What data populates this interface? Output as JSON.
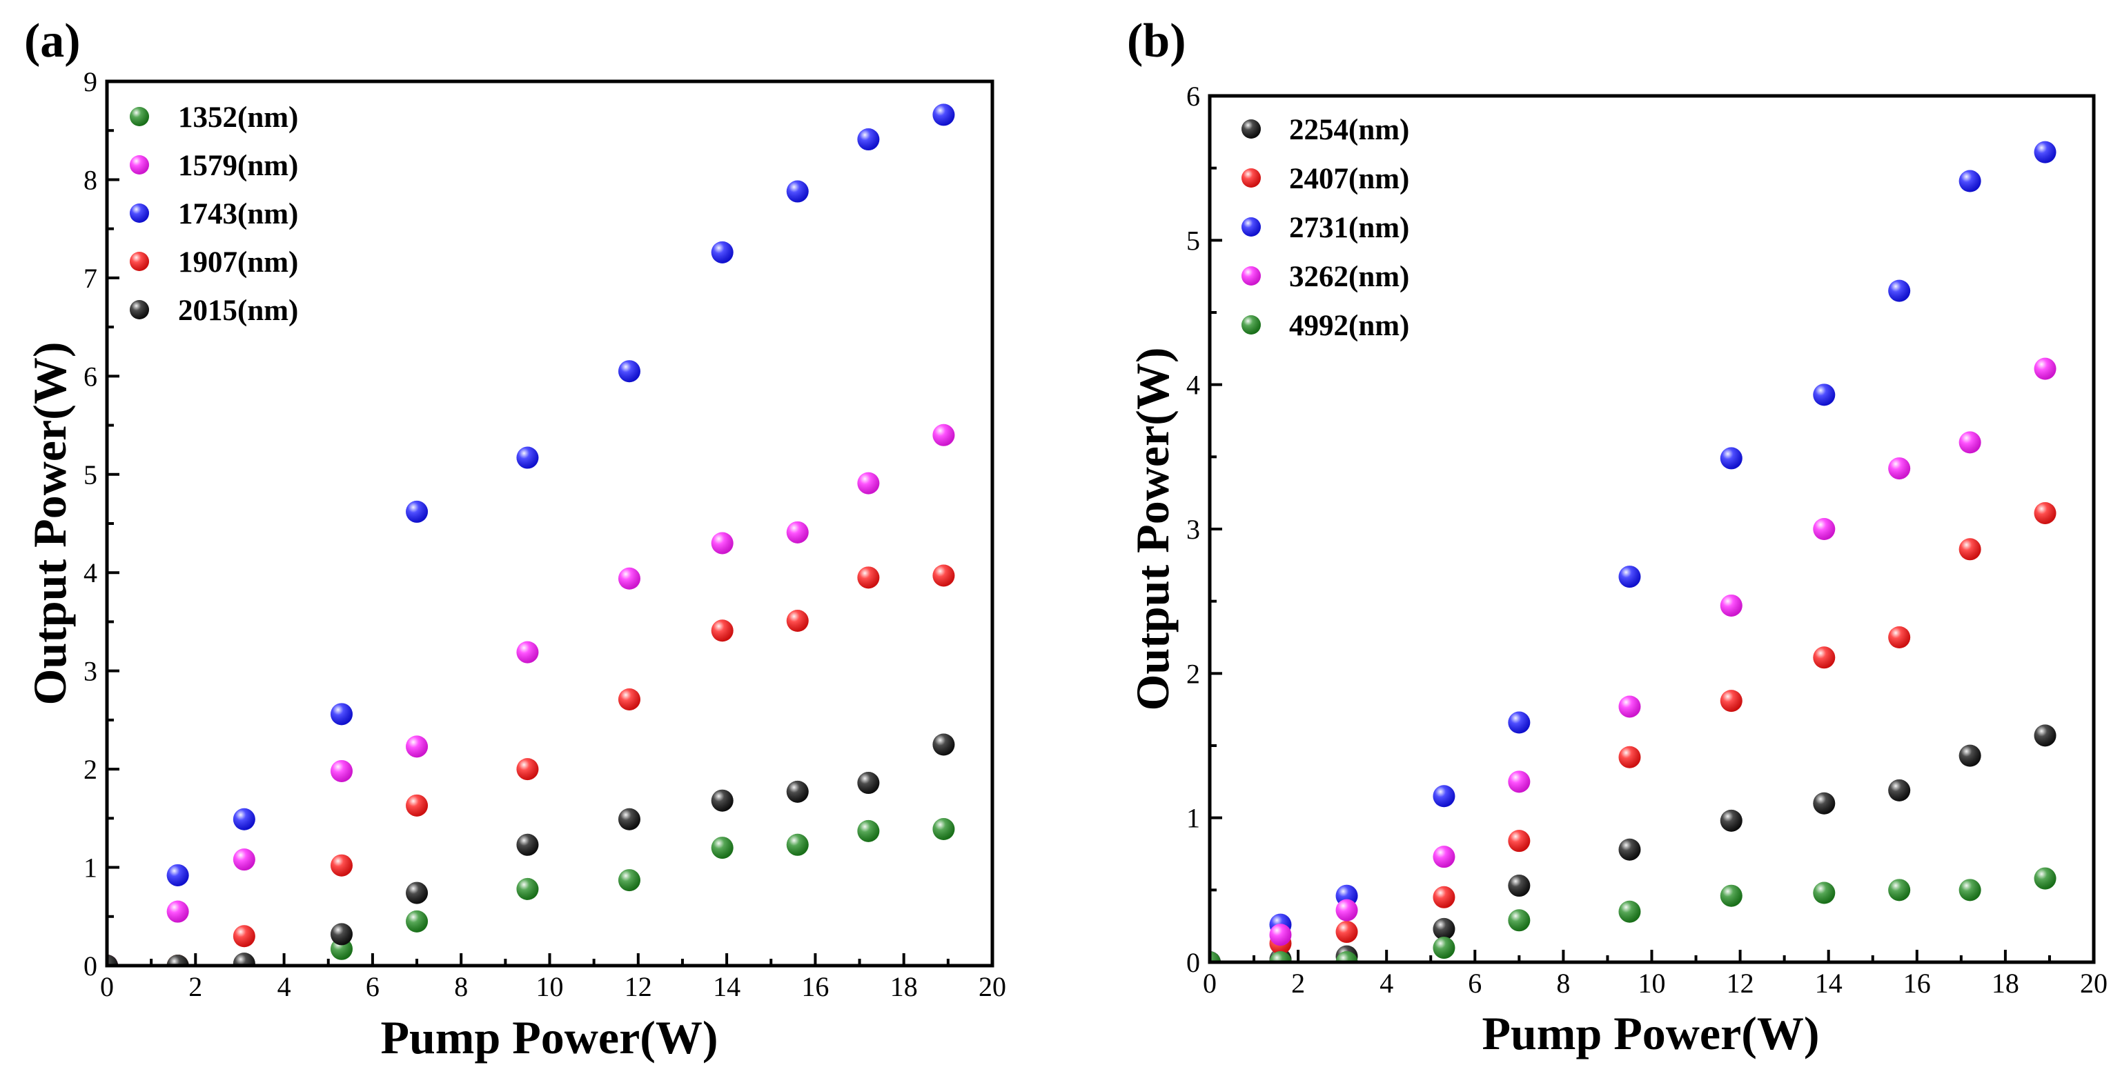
{
  "chart_data": [
    {
      "type": "scatter",
      "panel_label": "(a)",
      "xlabel": "Pump Power(W)",
      "ylabel": "Output Power(W)",
      "xlim": [
        0,
        20
      ],
      "ylim": [
        0,
        9
      ],
      "xticks": [
        0,
        2,
        4,
        6,
        8,
        10,
        12,
        14,
        16,
        18,
        20
      ],
      "yticks": [
        0,
        1,
        2,
        3,
        4,
        5,
        6,
        7,
        8,
        9
      ],
      "legend_position": "top-left",
      "series": [
        {
          "name": "1352(nm)",
          "color": "#1f8a1f",
          "x": [
            0,
            1.6,
            3.1,
            5.3,
            7.0,
            9.5,
            11.8,
            13.9,
            15.6,
            17.2,
            18.9
          ],
          "y": [
            0,
            0,
            0,
            0.17,
            0.45,
            0.78,
            0.87,
            1.2,
            1.23,
            1.37,
            1.39
          ]
        },
        {
          "name": "1579(nm)",
          "color": "#ff1aff",
          "x": [
            0,
            1.6,
            3.1,
            5.3,
            7.0,
            9.5,
            11.8,
            13.9,
            15.6,
            17.2,
            18.9
          ],
          "y": [
            0,
            0.55,
            1.08,
            1.98,
            2.23,
            3.19,
            3.94,
            4.3,
            4.41,
            4.91,
            5.4
          ]
        },
        {
          "name": "1743(nm)",
          "color": "#1414ff",
          "x": [
            0,
            1.6,
            3.1,
            5.3,
            7.0,
            9.5,
            11.8,
            13.9,
            15.6,
            17.2,
            18.9
          ],
          "y": [
            0,
            0.92,
            1.49,
            2.56,
            4.62,
            5.17,
            6.05,
            7.26,
            7.88,
            8.41,
            8.66
          ]
        },
        {
          "name": "1907(nm)",
          "color": "#ff1414",
          "x": [
            0,
            1.6,
            3.1,
            5.3,
            7.0,
            9.5,
            11.8,
            13.9,
            15.6,
            17.2,
            18.9
          ],
          "y": [
            0,
            0,
            0.3,
            1.02,
            1.63,
            2.0,
            2.71,
            3.41,
            3.51,
            3.95,
            3.97
          ]
        },
        {
          "name": "2015(nm)",
          "color": "#111111",
          "x": [
            0,
            1.6,
            3.1,
            5.3,
            7.0,
            9.5,
            11.8,
            13.9,
            15.6,
            17.2,
            18.9
          ],
          "y": [
            0,
            0,
            0.02,
            0.32,
            0.74,
            1.23,
            1.49,
            1.68,
            1.77,
            1.86,
            2.25
          ]
        }
      ]
    },
    {
      "type": "scatter",
      "panel_label": "(b)",
      "xlabel": "Pump Power(W)",
      "ylabel": "Output Power(W)",
      "xlim": [
        0,
        20
      ],
      "ylim": [
        0,
        6
      ],
      "xticks": [
        0,
        2,
        4,
        6,
        8,
        10,
        12,
        14,
        16,
        18,
        20
      ],
      "yticks": [
        0,
        1,
        2,
        3,
        4,
        5,
        6
      ],
      "legend_position": "top-left",
      "series": [
        {
          "name": "2254(nm)",
          "color": "#111111",
          "x": [
            0,
            1.6,
            3.1,
            5.3,
            7.0,
            9.5,
            11.8,
            13.9,
            15.6,
            17.2,
            18.9
          ],
          "y": [
            0,
            0.02,
            0.04,
            0.23,
            0.53,
            0.78,
            0.98,
            1.1,
            1.19,
            1.43,
            1.57
          ]
        },
        {
          "name": "2407(nm)",
          "color": "#ff1414",
          "x": [
            0,
            1.6,
            3.1,
            5.3,
            7.0,
            9.5,
            11.8,
            13.9,
            15.6,
            17.2,
            18.9
          ],
          "y": [
            0,
            0.13,
            0.21,
            0.45,
            0.84,
            1.42,
            1.81,
            2.11,
            2.25,
            2.86,
            3.11
          ]
        },
        {
          "name": "2731(nm)",
          "color": "#1414ff",
          "x": [
            0,
            1.6,
            3.1,
            5.3,
            7.0,
            9.5,
            11.8,
            13.9,
            15.6,
            17.2,
            18.9
          ],
          "y": [
            0,
            0.26,
            0.46,
            1.15,
            1.66,
            2.67,
            3.49,
            3.93,
            4.65,
            5.41,
            5.61
          ]
        },
        {
          "name": "3262(nm)",
          "color": "#ff1aff",
          "x": [
            0,
            1.6,
            3.1,
            5.3,
            7.0,
            9.5,
            11.8,
            13.9,
            15.6,
            17.2,
            18.9
          ],
          "y": [
            0,
            0.19,
            0.36,
            0.73,
            1.25,
            1.77,
            2.47,
            3.0,
            3.42,
            3.6,
            4.11
          ]
        },
        {
          "name": "4992(nm)",
          "color": "#1f8a1f",
          "x": [
            0,
            1.6,
            3.1,
            5.3,
            7.0,
            9.5,
            11.8,
            13.9,
            15.6,
            17.2,
            18.9
          ],
          "y": [
            0,
            0,
            0,
            0.1,
            0.29,
            0.35,
            0.46,
            0.48,
            0.5,
            0.5,
            0.58
          ]
        }
      ]
    }
  ]
}
